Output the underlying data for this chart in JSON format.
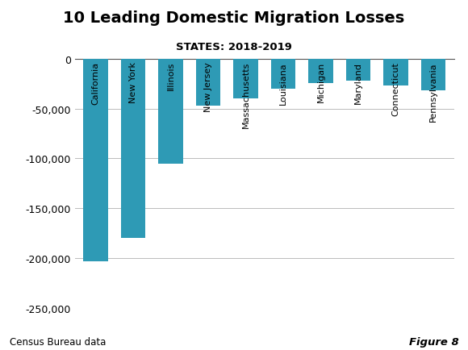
{
  "title": "10 Leading Domestic Migration Losses",
  "subtitle": "STATES: 2018-2019",
  "categories": [
    "California",
    "New York",
    "Illinois",
    "New Jersey",
    "Massachusetts",
    "Louisiana",
    "Michigan",
    "Maryland",
    "Connecticut",
    "Pennsylvania"
  ],
  "values": [
    -203000,
    -180000,
    -105000,
    -47000,
    -40000,
    -30000,
    -24000,
    -22000,
    -27000,
    -32000
  ],
  "bar_color": "#2e9ab5",
  "ylim": [
    -250000,
    0
  ],
  "yticks": [
    0,
    -50000,
    -100000,
    -150000,
    -200000,
    -250000
  ],
  "footnote": "Census Bureau data",
  "figure_label": "Figure 8",
  "bg_color": "#ffffff",
  "grid_color": "#bbbbbb"
}
